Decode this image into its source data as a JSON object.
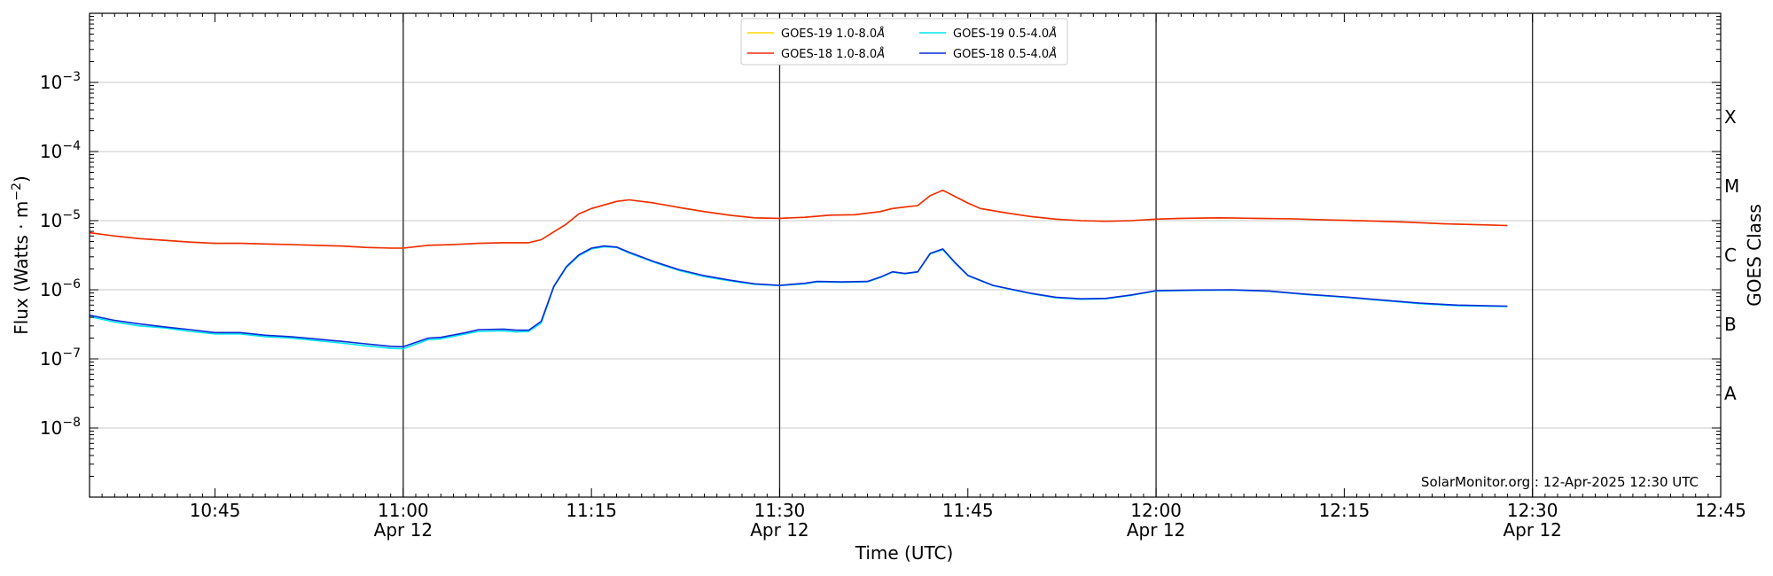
{
  "chart_data": {
    "type": "line",
    "xlabel": "Time (UTC)",
    "ylabel_main": "Flux (Watts · m",
    "ylabel_sup": "−2",
    "ylabel_close": ")",
    "right_axis_label": "GOES Class",
    "x_domain": [
      "10:35",
      "12:45"
    ],
    "y_scale": "log",
    "ylim": [
      1e-09,
      0.01
    ],
    "grid": "horizontal at decades",
    "legend_placement": "top-center",
    "x_ticks": [
      {
        "time": "10:45",
        "label": "10:45",
        "sub": ""
      },
      {
        "time": "11:00",
        "label": "11:00",
        "sub": "Apr 12"
      },
      {
        "time": "11:15",
        "label": "11:15",
        "sub": ""
      },
      {
        "time": "11:30",
        "label": "11:30",
        "sub": "Apr 12"
      },
      {
        "time": "11:45",
        "label": "11:45",
        "sub": ""
      },
      {
        "time": "12:00",
        "label": "12:00",
        "sub": "Apr 12"
      },
      {
        "time": "12:15",
        "label": "12:15",
        "sub": ""
      },
      {
        "time": "12:30",
        "label": "12:30",
        "sub": "Apr 12"
      },
      {
        "time": "12:45",
        "label": "12:45",
        "sub": ""
      }
    ],
    "vlines": [
      "11:00",
      "11:30",
      "12:00",
      "12:30"
    ],
    "y_ticks": [
      {
        "value": 0.001,
        "base": "10",
        "exp": "−3"
      },
      {
        "value": 0.0001,
        "base": "10",
        "exp": "−4"
      },
      {
        "value": 1e-05,
        "base": "10",
        "exp": "−5"
      },
      {
        "value": 1e-06,
        "base": "10",
        "exp": "−6"
      },
      {
        "value": 1e-07,
        "base": "10",
        "exp": "−7"
      },
      {
        "value": 1e-08,
        "base": "10",
        "exp": "−8"
      }
    ],
    "goes_classes": [
      {
        "label": "X",
        "value": 0.000316
      },
      {
        "label": "M",
        "value": 3.16e-05
      },
      {
        "label": "C",
        "value": 3.16e-06
      },
      {
        "label": "B",
        "value": 3.16e-07
      },
      {
        "label": "A",
        "value": 3.16e-08
      }
    ],
    "annotation": "SolarMonitor.org : 12-Apr-2025 12:30 UTC",
    "series": [
      {
        "name": "GOES-19 1.0-8.0",
        "color": "#ffd700",
        "x": [
          "10:35",
          "10:37",
          "10:39",
          "10:41",
          "10:43",
          "10:45",
          "10:47",
          "10:49",
          "10:51",
          "10:53",
          "10:55",
          "10:57",
          "10:59",
          "11:00",
          "11:02",
          "11:04",
          "11:06",
          "11:08",
          "11:10",
          "11:11",
          "11:13",
          "11:14",
          "11:15",
          "11:17",
          "11:18",
          "11:20",
          "11:22",
          "11:24",
          "11:26",
          "11:28",
          "11:30",
          "11:32",
          "11:34",
          "11:36",
          "11:38",
          "11:39",
          "11:41",
          "11:42",
          "11:43",
          "11:45",
          "11:46",
          "11:48",
          "11:50",
          "11:52",
          "11:54",
          "11:56",
          "11:58",
          "12:00",
          "12:02",
          "12:05",
          "12:08",
          "12:11",
          "12:14",
          "12:17",
          "12:20",
          "12:23",
          "12:25",
          "12:28"
        ],
        "values": [
          6.7e-06,
          6e-06,
          5.5e-06,
          5.2e-06,
          4.9e-06,
          4.7e-06,
          4.7e-06,
          4.6e-06,
          4.5e-06,
          4.4e-06,
          4.3e-06,
          4.1e-06,
          4e-06,
          4e-06,
          4.4e-06,
          4.5e-06,
          4.7e-06,
          4.8e-06,
          4.8e-06,
          5.3e-06,
          8.9e-06,
          1.25e-05,
          1.5e-05,
          1.9e-05,
          2e-05,
          1.8e-05,
          1.55e-05,
          1.35e-05,
          1.2e-05,
          1.1e-05,
          1.08e-05,
          1.12e-05,
          1.2e-05,
          1.22e-05,
          1.35e-05,
          1.5e-05,
          1.65e-05,
          2.3e-05,
          2.75e-05,
          1.8e-05,
          1.5e-05,
          1.3e-05,
          1.15e-05,
          1.05e-05,
          1e-05,
          9.8e-06,
          1e-05,
          1.05e-05,
          1.08e-05,
          1.1e-05,
          1.08e-05,
          1.06e-05,
          1.02e-05,
          9.9e-06,
          9.5e-06,
          9e-06,
          8.8e-06,
          8.5e-06
        ]
      },
      {
        "name": "GOES-18 1.0-8.0",
        "color": "#ee2a0c",
        "x": [
          "10:35",
          "10:37",
          "10:39",
          "10:41",
          "10:43",
          "10:45",
          "10:47",
          "10:49",
          "10:51",
          "10:53",
          "10:55",
          "10:57",
          "10:59",
          "11:00",
          "11:02",
          "11:04",
          "11:06",
          "11:08",
          "11:10",
          "11:11",
          "11:13",
          "11:14",
          "11:15",
          "11:17",
          "11:18",
          "11:20",
          "11:22",
          "11:24",
          "11:26",
          "11:28",
          "11:30",
          "11:32",
          "11:34",
          "11:36",
          "11:38",
          "11:39",
          "11:41",
          "11:42",
          "11:43",
          "11:45",
          "11:46",
          "11:48",
          "11:50",
          "11:52",
          "11:54",
          "11:56",
          "11:58",
          "12:00",
          "12:02",
          "12:05",
          "12:08",
          "12:11",
          "12:14",
          "12:17",
          "12:20",
          "12:23",
          "12:25",
          "12:28"
        ],
        "values": [
          6.7e-06,
          6e-06,
          5.5e-06,
          5.2e-06,
          4.9e-06,
          4.7e-06,
          4.7e-06,
          4.6e-06,
          4.5e-06,
          4.4e-06,
          4.3e-06,
          4.1e-06,
          4e-06,
          4e-06,
          4.4e-06,
          4.5e-06,
          4.7e-06,
          4.8e-06,
          4.8e-06,
          5.3e-06,
          8.9e-06,
          1.25e-05,
          1.5e-05,
          1.9e-05,
          2e-05,
          1.8e-05,
          1.55e-05,
          1.35e-05,
          1.2e-05,
          1.1e-05,
          1.08e-05,
          1.12e-05,
          1.2e-05,
          1.22e-05,
          1.35e-05,
          1.5e-05,
          1.65e-05,
          2.3e-05,
          2.75e-05,
          1.8e-05,
          1.5e-05,
          1.3e-05,
          1.15e-05,
          1.05e-05,
          1e-05,
          9.8e-06,
          1e-05,
          1.05e-05,
          1.08e-05,
          1.1e-05,
          1.08e-05,
          1.06e-05,
          1.02e-05,
          9.9e-06,
          9.5e-06,
          9e-06,
          8.8e-06,
          8.5e-06
        ]
      },
      {
        "name": "GOES-19 0.5-4.0",
        "color": "#00e5ee",
        "x": [
          "10:35",
          "10:37",
          "10:39",
          "10:41",
          "10:43",
          "10:45",
          "10:47",
          "10:49",
          "10:51",
          "10:53",
          "10:55",
          "10:57",
          "10:59",
          "11:00",
          "11:02",
          "11:03",
          "11:05",
          "11:06",
          "11:08",
          "11:09",
          "11:10",
          "11:11",
          "11:12",
          "11:13",
          "11:14",
          "11:15",
          "11:16",
          "11:17",
          "11:18",
          "11:20",
          "11:22",
          "11:24",
          "11:26",
          "11:28",
          "11:30",
          "11:32",
          "11:33",
          "11:35",
          "11:37",
          "11:38",
          "11:39",
          "11:40",
          "11:41",
          "11:42",
          "11:43",
          "11:44",
          "11:45",
          "11:47",
          "11:50",
          "11:52",
          "11:54",
          "11:56",
          "11:58",
          "12:00",
          "12:03",
          "12:06",
          "12:09",
          "12:12",
          "12:15",
          "12:18",
          "12:21",
          "12:24",
          "12:28"
        ],
        "values": [
          4.1e-07,
          3.4e-07,
          3e-07,
          2.8e-07,
          2.5e-07,
          2.3e-07,
          2.3e-07,
          2.1e-07,
          2e-07,
          1.85e-07,
          1.7e-07,
          1.55e-07,
          1.42e-07,
          1.4e-07,
          1.9e-07,
          1.95e-07,
          2.3e-07,
          2.5e-07,
          2.55e-07,
          2.45e-07,
          2.5e-07,
          3.3e-07,
          1.1e-06,
          2.1e-06,
          3.1e-06,
          3.9e-06,
          4.2e-06,
          4.1e-06,
          3.4e-06,
          2.5e-06,
          1.9e-06,
          1.55e-06,
          1.35e-06,
          1.2e-06,
          1.15e-06,
          1.22e-06,
          1.3e-06,
          1.28e-06,
          1.3e-06,
          1.5e-06,
          1.8e-06,
          1.7e-06,
          1.8e-06,
          3.3e-06,
          3.8e-06,
          2.4e-06,
          1.6e-06,
          1.15e-06,
          8.8e-07,
          7.7e-07,
          7.3e-07,
          7.4e-07,
          8.3e-07,
          9.6e-07,
          9.8e-07,
          9.9e-07,
          9.5e-07,
          8.5e-07,
          7.8e-07,
          7e-07,
          6.3e-07,
          5.9e-07,
          5.7e-07
        ]
      },
      {
        "name": "GOES-18 0.5-4.0",
        "color": "#0a2ad8",
        "x": [
          "10:35",
          "10:37",
          "10:39",
          "10:41",
          "10:43",
          "10:45",
          "10:47",
          "10:49",
          "10:51",
          "10:53",
          "10:55",
          "10:57",
          "10:59",
          "11:00",
          "11:02",
          "11:03",
          "11:05",
          "11:06",
          "11:08",
          "11:09",
          "11:10",
          "11:11",
          "11:12",
          "11:13",
          "11:14",
          "11:15",
          "11:16",
          "11:17",
          "11:18",
          "11:20",
          "11:22",
          "11:24",
          "11:26",
          "11:28",
          "11:30",
          "11:32",
          "11:33",
          "11:35",
          "11:37",
          "11:38",
          "11:39",
          "11:40",
          "11:41",
          "11:42",
          "11:43",
          "11:44",
          "11:45",
          "11:47",
          "11:50",
          "11:52",
          "11:54",
          "11:56",
          "11:58",
          "12:00",
          "12:03",
          "12:06",
          "12:09",
          "12:12",
          "12:15",
          "12:18",
          "12:21",
          "12:24",
          "12:28"
        ],
        "values": [
          4.3e-07,
          3.6e-07,
          3.2e-07,
          2.9e-07,
          2.65e-07,
          2.4e-07,
          2.4e-07,
          2.2e-07,
          2.1e-07,
          1.95e-07,
          1.8e-07,
          1.65e-07,
          1.52e-07,
          1.5e-07,
          2e-07,
          2.05e-07,
          2.4e-07,
          2.65e-07,
          2.7e-07,
          2.6e-07,
          2.6e-07,
          3.5e-07,
          1.12e-06,
          2.15e-06,
          3.2e-06,
          4e-06,
          4.3e-06,
          4.15e-06,
          3.5e-06,
          2.55e-06,
          1.95e-06,
          1.6e-06,
          1.38e-06,
          1.22e-06,
          1.16e-06,
          1.24e-06,
          1.32e-06,
          1.3e-06,
          1.32e-06,
          1.52e-06,
          1.82e-06,
          1.72e-06,
          1.82e-06,
          3.35e-06,
          3.9e-06,
          2.45e-06,
          1.62e-06,
          1.16e-06,
          8.9e-07,
          7.8e-07,
          7.4e-07,
          7.5e-07,
          8.4e-07,
          9.7e-07,
          9.9e-07,
          1e-06,
          9.6e-07,
          8.6e-07,
          7.9e-07,
          7.1e-07,
          6.4e-07,
          6e-07,
          5.8e-07
        ]
      }
    ]
  }
}
